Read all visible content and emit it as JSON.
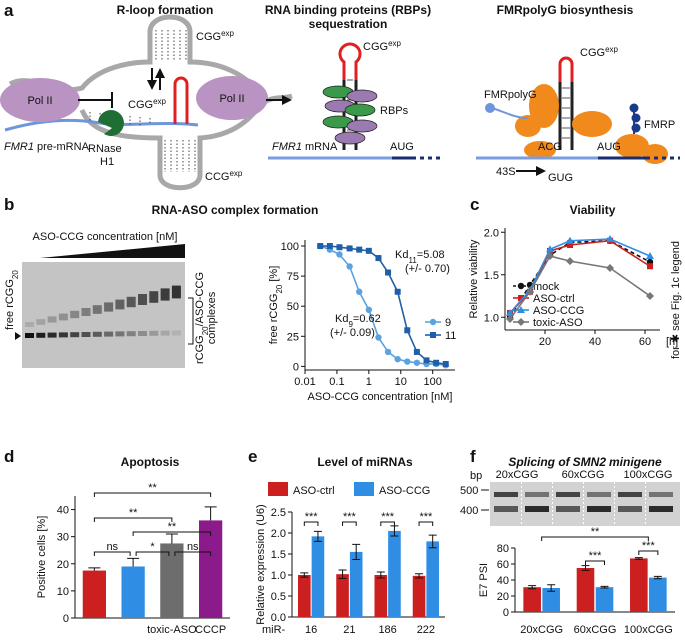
{
  "panels": {
    "a": {
      "label": "a",
      "r_loop": {
        "title": "R-loop formation",
        "cgg_top": [
          "CGG",
          "exp"
        ],
        "pol_ii_left": "Pol II",
        "pol_ii_right": "Pol II",
        "cgg_mid": [
          "CGG",
          "exp"
        ],
        "pre_mrna": [
          "FMR1",
          "pre-mRNA"
        ],
        "rnase": "RNase",
        "h1": "H1",
        "ccg": [
          "CCG",
          "exp"
        ]
      },
      "rbp": {
        "title_1": "RNA binding proteins (RBPs)",
        "title_2": "sequestration",
        "cgg": [
          "CGG",
          "exp"
        ],
        "rbps": "RBPs",
        "mrna": [
          "FMR1",
          "mRNA"
        ],
        "aug": "AUG"
      },
      "polyg": {
        "title": "FMRpolyG biosynthesis",
        "cgg": [
          "CGG",
          "exp"
        ],
        "fmrpolyg": "FMRpolyG",
        "fmrp": "FMRP",
        "acg": "ACG",
        "aug": "AUG",
        "s43": "43S",
        "gug": "GUG"
      }
    },
    "b": {
      "label": "b",
      "title": "RNA-ASO complex formation",
      "gel_title": "ASO-CCG concentration [nM]",
      "free": [
        "free rCGG",
        "20"
      ],
      "complex": [
        "rCGG",
        "20",
        "/ASO-CCG"
      ],
      "complex2": "complexes"
    },
    "c": {
      "label": "c"
    },
    "d": {
      "label": "d"
    },
    "e": {
      "label": "e"
    },
    "f": {
      "label": "f",
      "title": [
        "Splicing of",
        "SMN2",
        "minigene"
      ],
      "gel_groups": [
        "20xCGG",
        "60xCGG",
        "100xCGG"
      ],
      "bp": "bp",
      "markers": [
        500,
        400
      ]
    }
  },
  "chart_data": [
    {
      "type": "line",
      "log_x": true,
      "x_label": "ASO-CCG concentration [nM]",
      "y_label": [
        "free rCGG",
        "20",
        "[%]"
      ],
      "x": [
        0.03,
        0.06,
        0.12,
        0.25,
        0.5,
        1,
        2,
        4,
        8,
        16,
        32,
        64,
        128,
        256
      ],
      "xlim": [
        0.01,
        500
      ],
      "xticks": [
        0.01,
        0.1,
        1,
        10,
        100
      ],
      "ylim": [
        -3,
        105
      ],
      "yticks": [
        0,
        25,
        50,
        75,
        100
      ],
      "legend": "right",
      "series": [
        {
          "name": "9",
          "color": "#5ba3e0",
          "marker": "circle",
          "values": [
            100,
            97,
            93,
            83,
            62,
            47,
            24,
            12,
            6,
            4,
            3,
            2,
            2,
            1
          ]
        },
        {
          "name": "11",
          "color": "#1f5fa8",
          "marker": "square",
          "values": [
            100,
            100,
            99,
            98,
            97,
            96,
            90,
            78,
            62,
            30,
            12,
            5,
            3,
            2
          ]
        }
      ],
      "annotations": [
        [
          "Kd",
          "11",
          "=5.08"
        ],
        [
          "(+/- 0.70)"
        ],
        [
          "Kd",
          "9",
          "=0.62"
        ],
        [
          "(+/- 0.09)"
        ]
      ]
    },
    {
      "type": "line",
      "title": "Viability",
      "y_label": "Relative viability",
      "x_unit": "[h]",
      "note": "for ✱ see Fig. 1c legend",
      "x": [
        6,
        14,
        22,
        30,
        46,
        62
      ],
      "xlim": [
        4,
        66
      ],
      "xticks": [
        20,
        40,
        60
      ],
      "ylim": [
        0.85,
        2.05
      ],
      "yticks": [
        {
          "value": 1,
          "label": "1.0"
        },
        {
          "value": 1.5,
          "label": "1.5"
        },
        {
          "value": 2,
          "label": "2.0"
        }
      ],
      "legend": "lower left",
      "series": [
        {
          "name": "mock",
          "color": "#111111",
          "marker": "circle",
          "line_style": "dashed",
          "values": [
            1.0,
            1.38,
            1.73,
            1.88,
            1.9,
            1.65
          ]
        },
        {
          "name": "ASO-ctrl",
          "color": "#cc1f1f",
          "marker": "square",
          "values": [
            1.05,
            1.3,
            1.78,
            1.85,
            1.9,
            1.6
          ]
        },
        {
          "name": "ASO-CCG",
          "color": "#2f8de4",
          "marker": "triangle",
          "values": [
            1.05,
            1.32,
            1.8,
            1.9,
            1.92,
            1.72
          ]
        },
        {
          "name": "toxic-ASO",
          "color": "#777777",
          "marker": "diamond",
          "values": [
            0.98,
            1.3,
            1.72,
            1.66,
            1.58,
            1.25
          ]
        }
      ]
    },
    {
      "type": "bar",
      "title": "Apoptosis",
      "y_label": "Positive cells [%]",
      "categories": [
        null,
        null,
        "toxic-ASO",
        "CCCP"
      ],
      "values": [
        17.5,
        19,
        27.5,
        36
      ],
      "errors": [
        1,
        3,
        3.5,
        5
      ],
      "colors": [
        "#cc1f1f",
        "#2f8de4",
        "#6d6d6d",
        "#8b1a8b"
      ],
      "ylim": [
        0,
        45
      ],
      "yticks": [
        0,
        10,
        20,
        30,
        40
      ],
      "significance": [
        "**",
        "**",
        "**",
        "ns",
        "*",
        "ns"
      ]
    },
    {
      "type": "grouped-bar",
      "title": "Level of miRNAs",
      "y_label": "Relative expression (U6)",
      "category_prefix": "miR-",
      "categories": [
        "16",
        "21",
        "186",
        "222"
      ],
      "legend": "top",
      "series": [
        {
          "name": "ASO-ctrl",
          "color": "#cc1f1f",
          "values": [
            1.0,
            1.02,
            1.0,
            0.98
          ],
          "errors": [
            0.05,
            0.1,
            0.07,
            0.05
          ]
        },
        {
          "name": "ASO-CCG",
          "color": "#2f8de4",
          "values": [
            1.92,
            1.55,
            2.05,
            1.8
          ],
          "errors": [
            0.12,
            0.18,
            0.12,
            0.15
          ]
        }
      ],
      "ylim": [
        0,
        2.5
      ],
      "yticks": [
        {
          "value": 0,
          "label": "0.0"
        },
        {
          "value": 0.5,
          "label": "0.5"
        },
        {
          "value": 1,
          "label": "1.0"
        },
        {
          "value": 1.5,
          "label": "1.5"
        },
        {
          "value": 2,
          "label": "2.0"
        },
        {
          "value": 2.5,
          "label": "2.5"
        }
      ],
      "significance": [
        "***",
        "***",
        "***",
        "***"
      ]
    },
    {
      "type": "grouped-bar",
      "y_label": "E7 PSI",
      "categories": [
        "20xCGG",
        "60xCGG",
        "100xCGG"
      ],
      "category_colors": [
        "#2e8b2e",
        "#d02020",
        "#d02020"
      ],
      "series": [
        {
          "name": "ASO-ctrl",
          "color": "#cc1f1f",
          "values": [
            31,
            55,
            67
          ],
          "errors": [
            2,
            3,
            1
          ]
        },
        {
          "name": "ASO-CCG",
          "color": "#2f8de4",
          "values": [
            30,
            31,
            43
          ],
          "errors": [
            4,
            1,
            1.5
          ]
        }
      ],
      "ylim": [
        0,
        80
      ],
      "yticks": [
        0,
        20,
        40,
        60,
        80
      ],
      "significance": [
        "**",
        "***",
        "***"
      ]
    }
  ]
}
